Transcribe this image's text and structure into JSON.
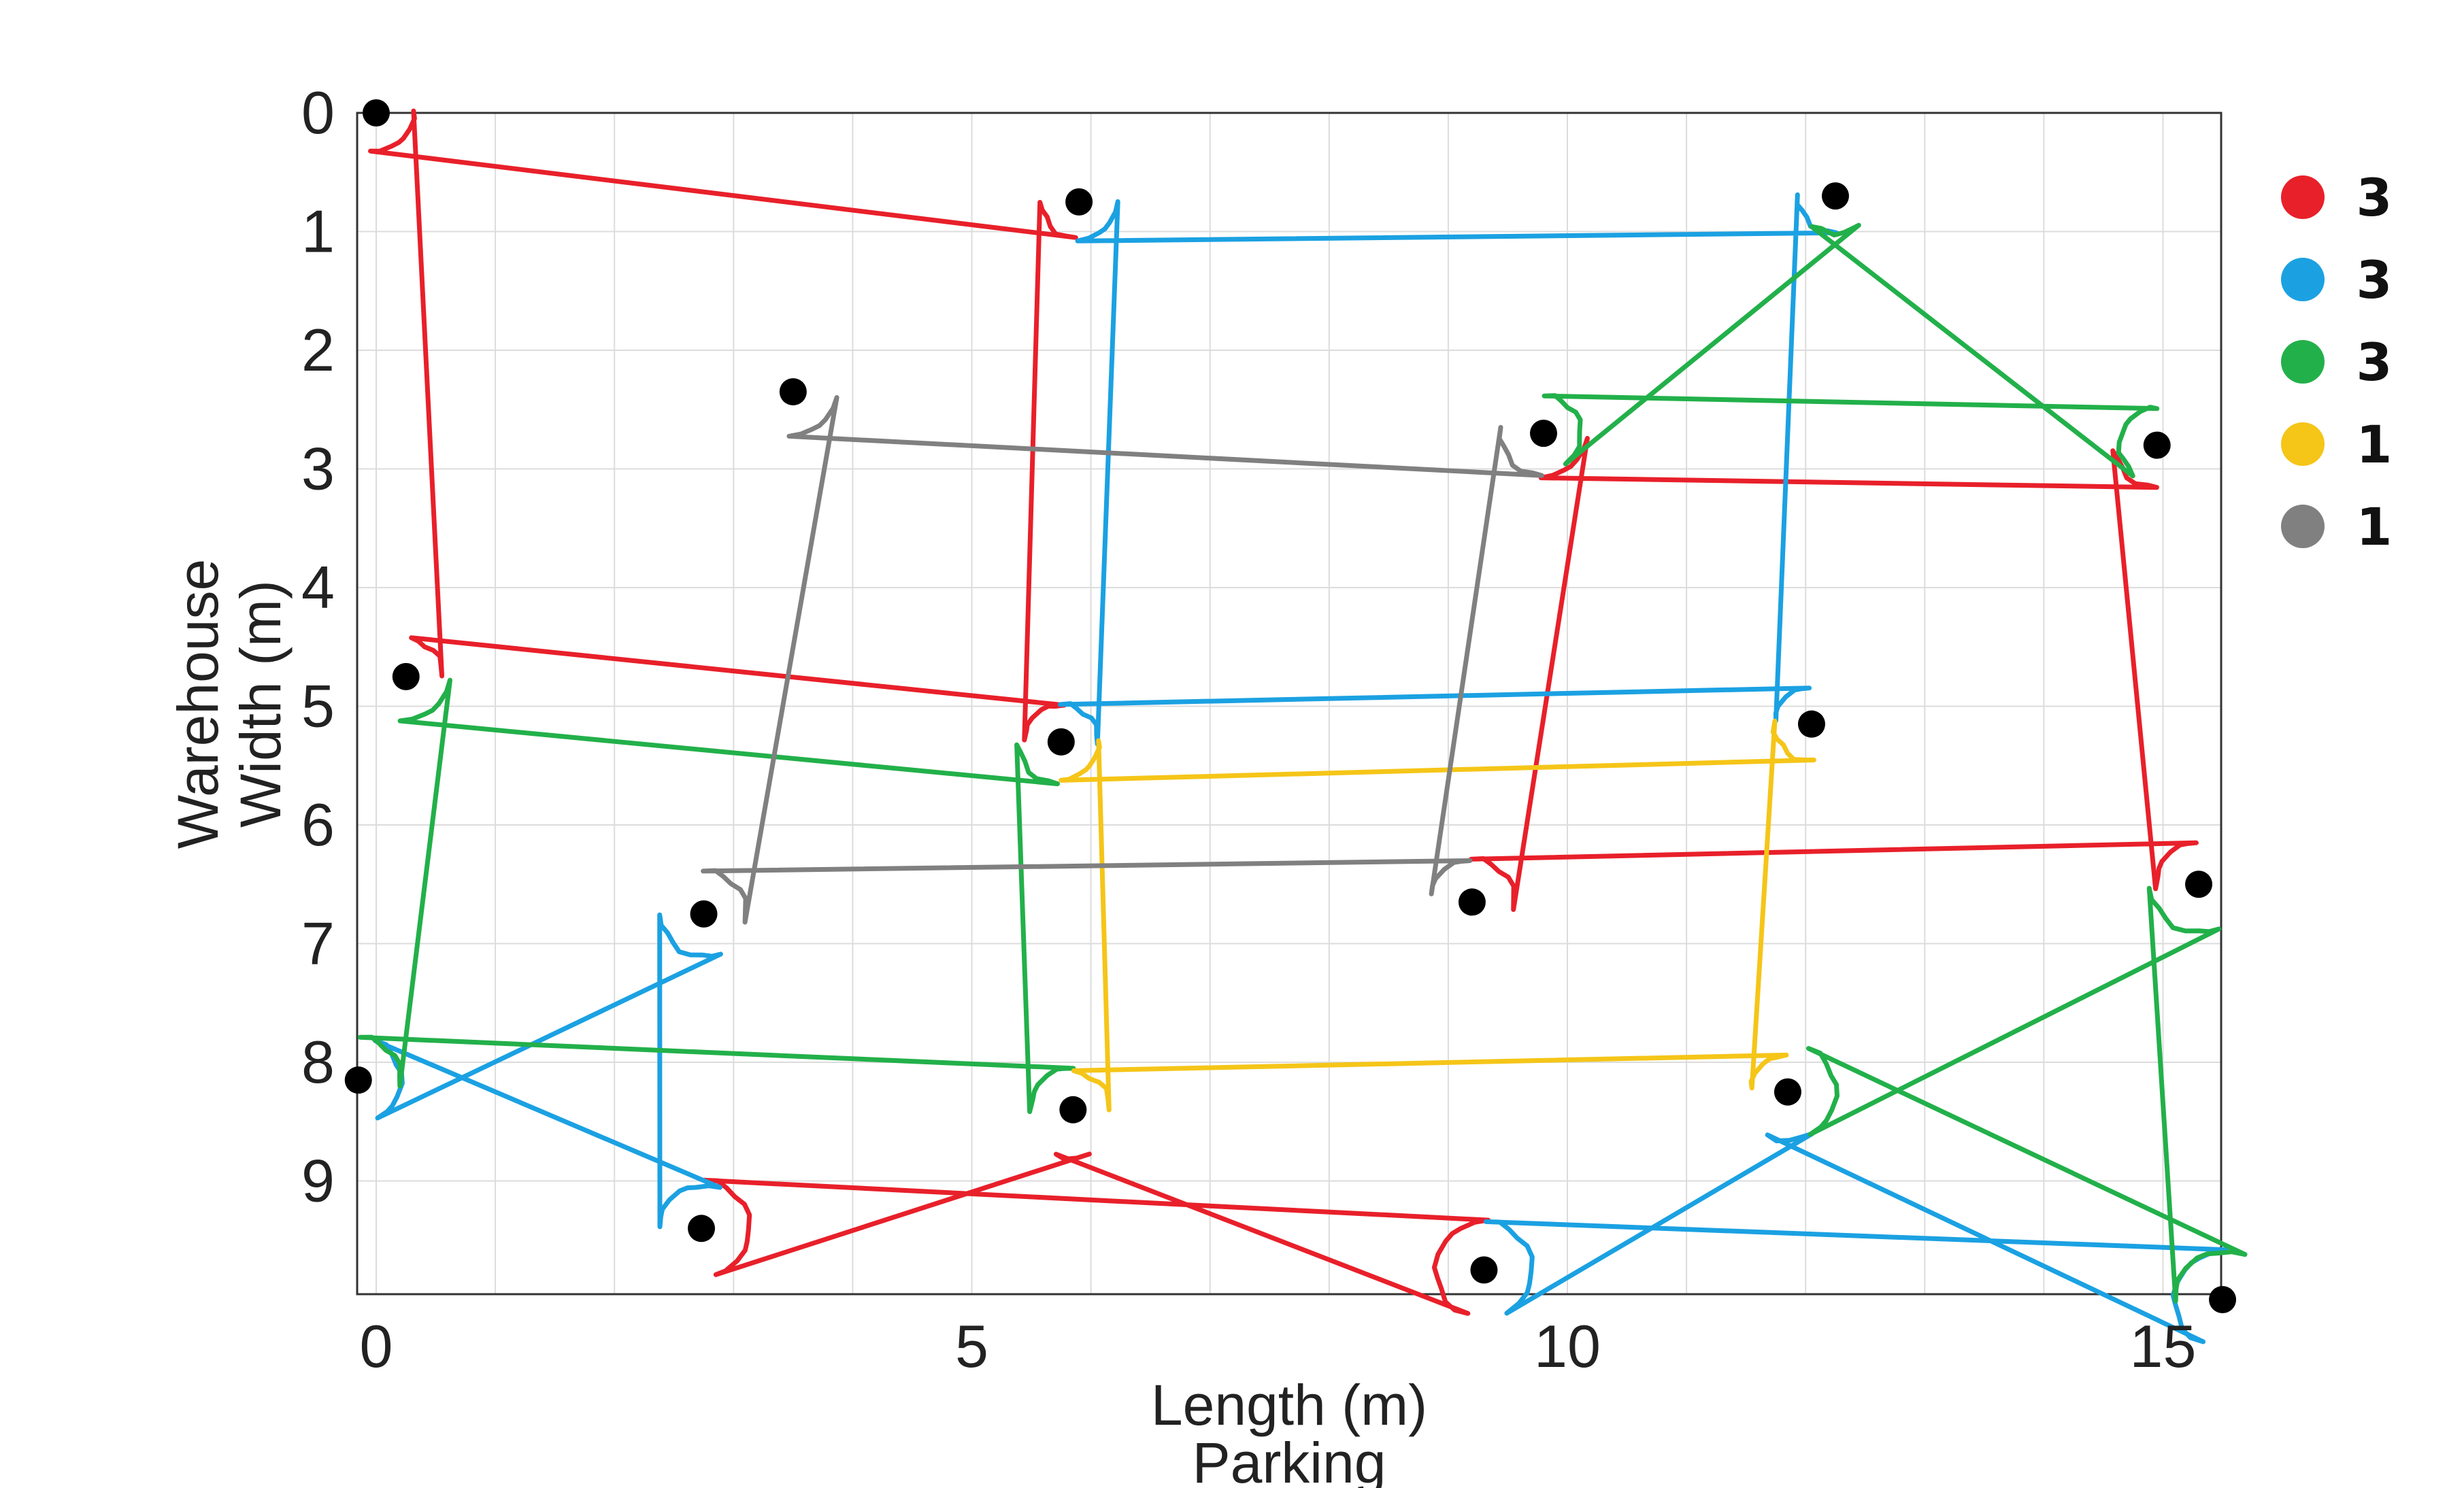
{
  "chart_data": {
    "type": "scatter",
    "title": "",
    "xlabel": "Length (m)",
    "xlabel_secondary": "Parking",
    "ylabel": "Width (m)",
    "ylabel_secondary": "Warehouse",
    "xlim": [
      -0.15,
      15.5
    ],
    "ylim": [
      0,
      10
    ],
    "y_inverted": true,
    "grid": true,
    "x_ticks": [
      0,
      5,
      10,
      15
    ],
    "y_ticks": [
      0,
      1,
      2,
      3,
      4,
      5,
      6,
      7,
      8,
      9
    ],
    "points": [
      {
        "x": 0.0,
        "y": 0.0
      },
      {
        "x": 5.9,
        "y": 0.75
      },
      {
        "x": 12.25,
        "y": 0.7
      },
      {
        "x": 3.5,
        "y": 2.35
      },
      {
        "x": 9.8,
        "y": 2.7
      },
      {
        "x": 14.95,
        "y": 2.8
      },
      {
        "x": 0.25,
        "y": 4.75
      },
      {
        "x": 5.75,
        "y": 5.3
      },
      {
        "x": 12.05,
        "y": 5.15
      },
      {
        "x": 9.2,
        "y": 6.65
      },
      {
        "x": 15.3,
        "y": 6.5
      },
      {
        "x": 2.75,
        "y": 6.75
      },
      {
        "x": -0.15,
        "y": 8.15
      },
      {
        "x": 5.85,
        "y": 8.4
      },
      {
        "x": 11.85,
        "y": 8.25
      },
      {
        "x": 2.73,
        "y": 9.4
      },
      {
        "x": 9.3,
        "y": 9.75
      },
      {
        "x": 15.5,
        "y": 10.0
      }
    ],
    "groups": [
      {
        "color": "#e8202a",
        "points": [
          0,
          1,
          6,
          7
        ]
      },
      {
        "color": "#e8202a",
        "points": [
          4,
          5,
          9,
          10
        ]
      },
      {
        "color": "#e8202a",
        "points": [
          13,
          15,
          16
        ]
      },
      {
        "color": "#1ba1e2",
        "points": [
          1,
          7,
          8,
          2
        ]
      },
      {
        "color": "#1ba1e2",
        "points": [
          11,
          12,
          15
        ]
      },
      {
        "color": "#1ba1e2",
        "points": [
          14,
          16,
          17
        ]
      },
      {
        "color": "#22b04a",
        "points": [
          2,
          4,
          5
        ]
      },
      {
        "color": "#22b04a",
        "points": [
          6,
          7,
          12,
          13
        ]
      },
      {
        "color": "#22b04a",
        "points": [
          10,
          14,
          17
        ]
      },
      {
        "color": "#f5c518",
        "points": [
          7,
          8,
          13,
          14
        ]
      },
      {
        "color": "#808080",
        "points": [
          3,
          4,
          9,
          11
        ]
      }
    ],
    "legend": {
      "placement": "right",
      "entries": [
        {
          "color": "#e8202a",
          "label": "3"
        },
        {
          "color": "#1ba1e2",
          "label": "3"
        },
        {
          "color": "#22b04a",
          "label": "3"
        },
        {
          "color": "#f5c518",
          "label": "1"
        },
        {
          "color": "#808080",
          "label": "1"
        }
      ]
    }
  }
}
